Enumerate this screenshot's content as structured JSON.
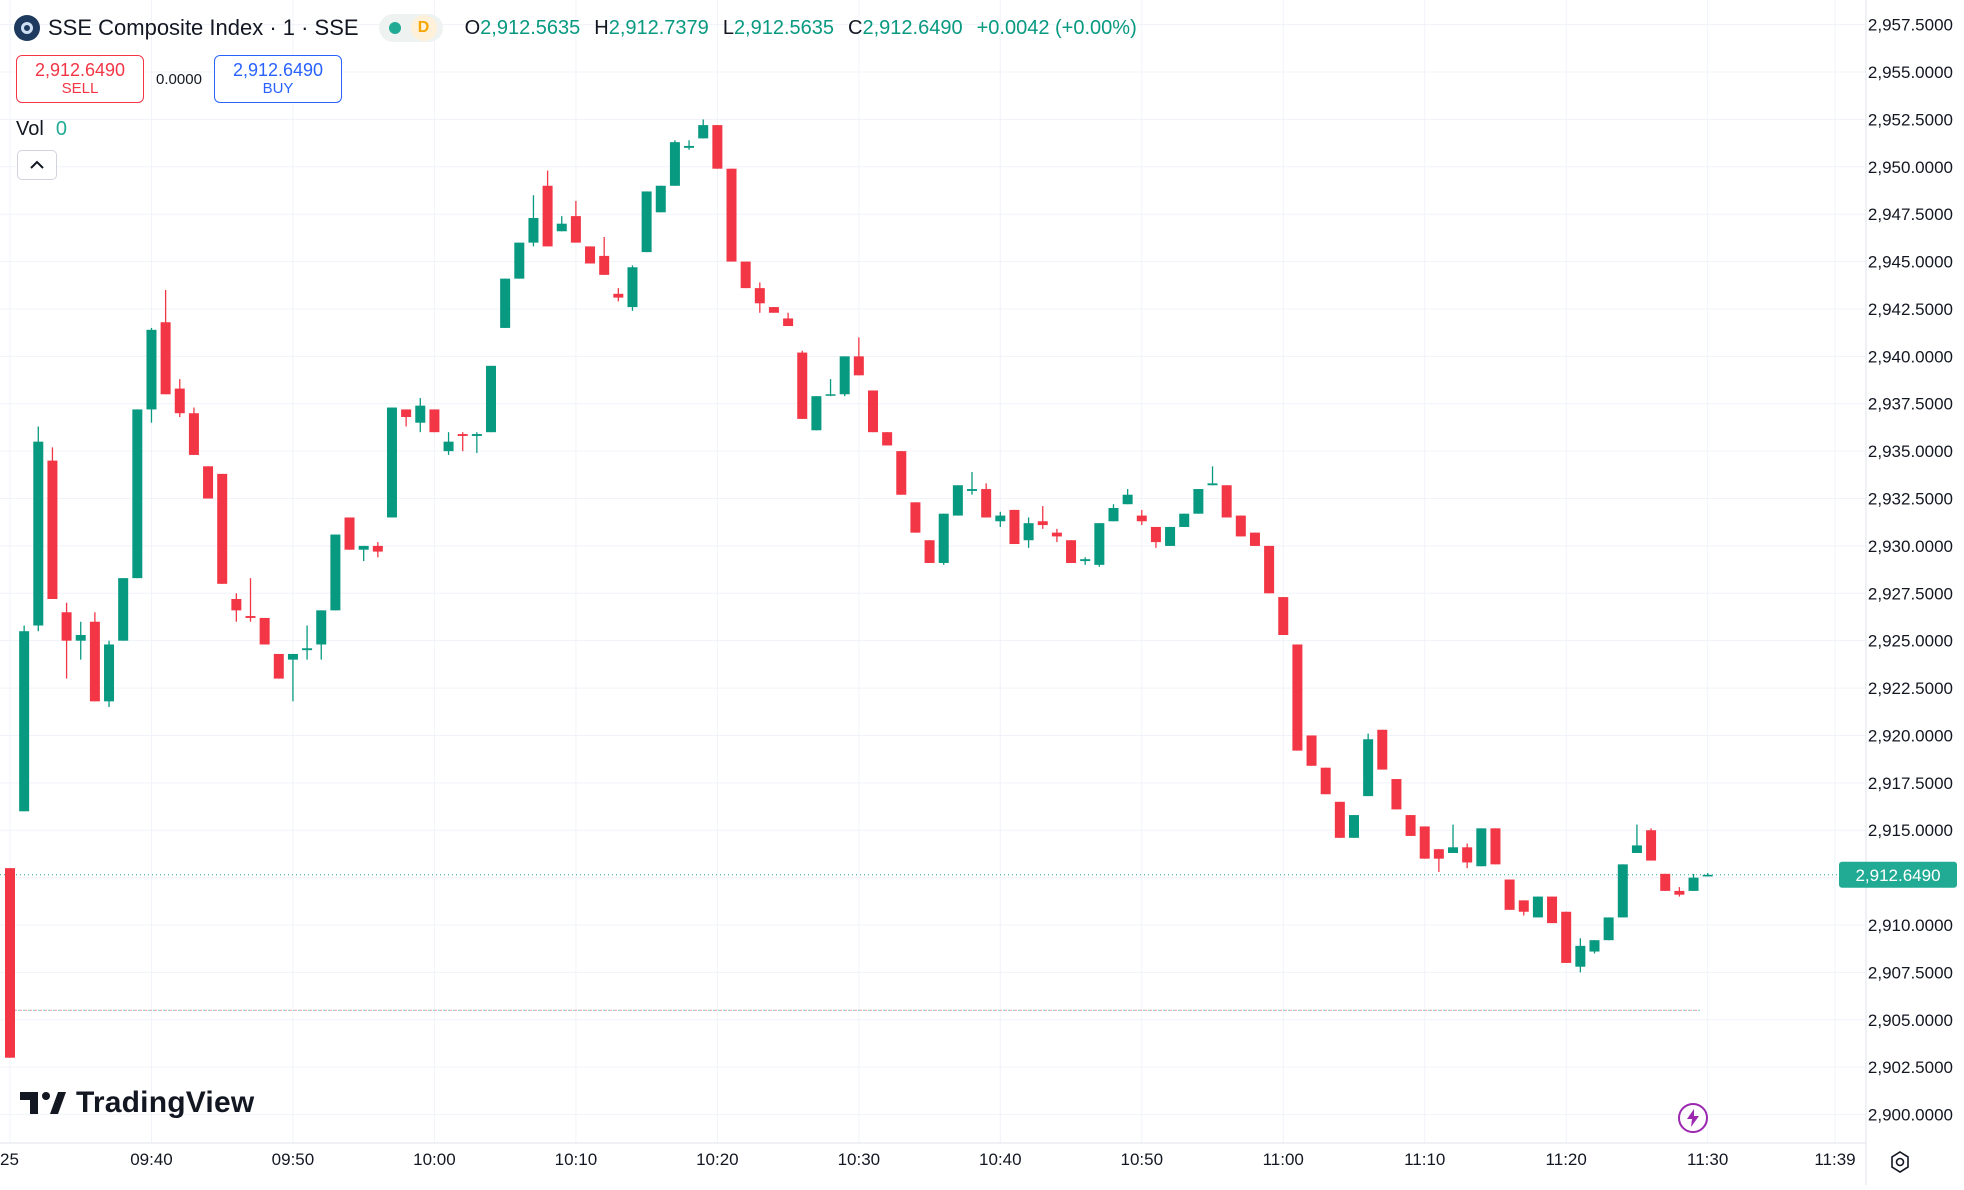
{
  "header": {
    "title": "SSE Composite Index · 1 · SSE",
    "status_letter": "D",
    "ohlc": [
      {
        "k": "O",
        "v": "2,912.5635"
      },
      {
        "k": "H",
        "v": "2,912.7379"
      },
      {
        "k": "L",
        "v": "2,912.5635"
      },
      {
        "k": "C",
        "v": "2,912.6490"
      }
    ],
    "change": "+0.0042 (+0.00%)"
  },
  "trade": {
    "sell_price": "2,912.6490",
    "sell_label": "SELL",
    "spread": "0.0000",
    "buy_price": "2,912.6490",
    "buy_label": "BUY"
  },
  "volume": {
    "label": "Vol",
    "value": "0"
  },
  "watermark": "TradingView",
  "colors": {
    "up": "#089981",
    "down": "#f23645",
    "current": "#22ab94",
    "grid": "#f0f3fa",
    "text": "#131722"
  },
  "icons": [
    "symbol-icon",
    "chevron-up-icon",
    "tradingview-logo-icon",
    "flash-icon",
    "settings-icon"
  ],
  "chart_data": {
    "type": "candlestick",
    "current_price": 2912.649,
    "current_price_label": "2,912.6490",
    "reference_line": 2905.5,
    "y_ticks": [
      "2,900.0000",
      "2,902.5000",
      "2,905.0000",
      "2,907.5000",
      "2,910.0000",
      "2,912.5000",
      "2,915.0000",
      "2,917.5000",
      "2,920.0000",
      "2,922.5000",
      "2,925.0000",
      "2,927.5000",
      "2,930.0000",
      "2,932.5000",
      "2,935.0000",
      "2,937.5000",
      "2,940.0000",
      "2,942.5000",
      "2,945.0000",
      "2,947.5000",
      "2,950.0000",
      "2,952.5000",
      "2,955.0000",
      "2,957.5000"
    ],
    "x_ticks": [
      {
        "label": "25",
        "t": "09:30"
      },
      {
        "label": "09:40",
        "t": "09:40"
      },
      {
        "label": "09:50",
        "t": "09:50"
      },
      {
        "label": "10:00",
        "t": "10:00"
      },
      {
        "label": "10:10",
        "t": "10:10"
      },
      {
        "label": "10:20",
        "t": "10:20"
      },
      {
        "label": "10:30",
        "t": "10:30"
      },
      {
        "label": "10:40",
        "t": "10:40"
      },
      {
        "label": "10:50",
        "t": "10:50"
      },
      {
        "label": "11:00",
        "t": "11:00"
      },
      {
        "label": "11:10",
        "t": "11:10"
      },
      {
        "label": "11:20",
        "t": "11:20"
      },
      {
        "label": "11:30",
        "t": "11:30"
      },
      {
        "label": "11:39",
        "t": "11:39"
      }
    ],
    "x_range": [
      "09:30",
      "11:39"
    ],
    "y_range": [
      2898.5,
      2958.8
    ],
    "candles": [
      [
        "09:30",
        2913.0,
        2913.0,
        2903.0,
        2903.0
      ],
      [
        "09:31",
        2916.0,
        2925.8,
        2916.0,
        2925.5
      ],
      [
        "09:32",
        2925.8,
        2936.3,
        2925.5,
        2935.5
      ],
      [
        "09:33",
        2934.5,
        2935.2,
        2927.2,
        2927.2
      ],
      [
        "09:34",
        2926.5,
        2927.0,
        2923.0,
        2925.0
      ],
      [
        "09:35",
        2925.0,
        2926.0,
        2924.0,
        2925.3
      ],
      [
        "09:36",
        2926.0,
        2926.5,
        2921.8,
        2921.8
      ],
      [
        "09:37",
        2921.8,
        2925.0,
        2921.5,
        2924.8
      ],
      [
        "09:38",
        2925.0,
        2928.3,
        2925.0,
        2928.3
      ],
      [
        "09:39",
        2928.3,
        2937.2,
        2928.3,
        2937.2
      ],
      [
        "09:40",
        2937.2,
        2941.5,
        2936.5,
        2941.4
      ],
      [
        "09:41",
        2941.8,
        2943.5,
        2938.0,
        2938.0
      ],
      [
        "09:42",
        2938.3,
        2938.8,
        2936.8,
        2937.0
      ],
      [
        "09:43",
        2937.0,
        2937.3,
        2934.8,
        2934.8
      ],
      [
        "09:44",
        2934.2,
        2934.2,
        2932.5,
        2932.5
      ],
      [
        "09:45",
        2933.8,
        2933.8,
        2928.0,
        2928.0
      ],
      [
        "09:46",
        2927.2,
        2927.5,
        2926.0,
        2926.6
      ],
      [
        "09:47",
        2926.3,
        2928.3,
        2926.0,
        2926.2
      ],
      [
        "09:48",
        2926.2,
        2926.2,
        2924.8,
        2924.8
      ],
      [
        "09:49",
        2924.3,
        2924.3,
        2923.0,
        2923.0
      ],
      [
        "09:50",
        2924.0,
        2924.3,
        2921.8,
        2924.3
      ],
      [
        "09:51",
        2924.5,
        2925.8,
        2924.0,
        2924.6
      ],
      [
        "09:52",
        2924.8,
        2926.6,
        2924.0,
        2926.6
      ],
      [
        "09:53",
        2926.6,
        2930.6,
        2926.6,
        2930.6
      ],
      [
        "09:54",
        2931.5,
        2931.5,
        2929.8,
        2929.8
      ],
      [
        "09:55",
        2929.8,
        2930.0,
        2929.2,
        2930.0
      ],
      [
        "09:56",
        2930.0,
        2930.2,
        2929.4,
        2929.7
      ],
      [
        "09:57",
        2931.5,
        2937.3,
        2931.5,
        2937.3
      ],
      [
        "09:58",
        2937.2,
        2937.2,
        2936.3,
        2936.8
      ],
      [
        "09:59",
        2936.5,
        2937.8,
        2936.0,
        2937.4
      ],
      [
        "10:00",
        2937.2,
        2937.2,
        2936.0,
        2936.0
      ],
      [
        "10:01",
        2935.0,
        2936.0,
        2934.8,
        2935.5
      ],
      [
        "10:02",
        2935.9,
        2936.0,
        2935.0,
        2935.8
      ],
      [
        "10:03",
        2935.8,
        2936.0,
        2934.9,
        2935.9
      ],
      [
        "10:04",
        2936.0,
        2939.5,
        2936.0,
        2939.5
      ],
      [
        "10:05",
        2941.5,
        2944.1,
        2941.5,
        2944.1
      ],
      [
        "10:06",
        2944.1,
        2946.0,
        2944.1,
        2946.0
      ],
      [
        "10:07",
        2946.0,
        2948.5,
        2945.8,
        2947.3
      ],
      [
        "10:08",
        2949.0,
        2949.8,
        2945.8,
        2945.8
      ],
      [
        "10:09",
        2946.6,
        2947.4,
        2946.6,
        2947.0
      ],
      [
        "10:10",
        2947.4,
        2948.2,
        2946.0,
        2946.0
      ],
      [
        "10:11",
        2945.8,
        2945.8,
        2944.9,
        2944.9
      ],
      [
        "10:12",
        2945.3,
        2946.3,
        2944.3,
        2944.3
      ],
      [
        "10:13",
        2943.3,
        2943.6,
        2942.9,
        2943.1
      ],
      [
        "10:14",
        2942.6,
        2944.8,
        2942.4,
        2944.7
      ],
      [
        "10:15",
        2945.5,
        2948.7,
        2945.5,
        2948.7
      ],
      [
        "10:16",
        2947.6,
        2949.0,
        2947.6,
        2949.0
      ],
      [
        "10:17",
        2949.0,
        2951.4,
        2949.0,
        2951.3
      ],
      [
        "10:18",
        2951.0,
        2951.4,
        2950.9,
        2951.1
      ],
      [
        "10:19",
        2951.5,
        2952.5,
        2951.5,
        2952.2
      ],
      [
        "10:20",
        2952.2,
        2952.2,
        2949.9,
        2949.9
      ],
      [
        "10:21",
        2949.9,
        2949.9,
        2945.0,
        2945.0
      ],
      [
        "10:22",
        2945.0,
        2945.0,
        2943.6,
        2943.6
      ],
      [
        "10:23",
        2943.6,
        2943.9,
        2942.3,
        2942.8
      ],
      [
        "10:24",
        2942.6,
        2942.6,
        2942.3,
        2942.3
      ],
      [
        "10:25",
        2942.0,
        2942.3,
        2941.6,
        2941.6
      ],
      [
        "10:26",
        2940.2,
        2940.3,
        2936.7,
        2936.7
      ],
      [
        "10:27",
        2936.1,
        2937.9,
        2936.1,
        2937.9
      ],
      [
        "10:28",
        2938.0,
        2938.8,
        2937.9,
        2938.0
      ],
      [
        "10:29",
        2938.0,
        2940.0,
        2937.9,
        2940.0
      ],
      [
        "10:30",
        2940.0,
        2941.0,
        2939.0,
        2939.0
      ],
      [
        "10:31",
        2938.2,
        2938.2,
        2936.0,
        2936.0
      ],
      [
        "10:32",
        2936.0,
        2936.0,
        2935.3,
        2935.3
      ],
      [
        "10:33",
        2935.0,
        2935.0,
        2932.7,
        2932.7
      ],
      [
        "10:34",
        2932.3,
        2932.3,
        2930.7,
        2930.7
      ],
      [
        "10:35",
        2930.3,
        2930.3,
        2929.1,
        2929.1
      ],
      [
        "10:36",
        2929.1,
        2931.7,
        2929.0,
        2931.7
      ],
      [
        "10:37",
        2931.6,
        2933.2,
        2931.6,
        2933.2
      ],
      [
        "10:38",
        2932.9,
        2933.9,
        2932.7,
        2933.0
      ],
      [
        "10:39",
        2933.0,
        2933.3,
        2931.5,
        2931.5
      ],
      [
        "10:40",
        2931.3,
        2931.8,
        2931.0,
        2931.6
      ],
      [
        "10:41",
        2931.9,
        2931.9,
        2930.1,
        2930.1
      ],
      [
        "10:42",
        2930.3,
        2931.5,
        2929.9,
        2931.2
      ],
      [
        "10:43",
        2931.3,
        2932.1,
        2930.9,
        2931.1
      ],
      [
        "10:44",
        2930.7,
        2930.9,
        2930.2,
        2930.5
      ],
      [
        "10:45",
        2930.3,
        2930.3,
        2929.1,
        2929.1
      ],
      [
        "10:46",
        2929.2,
        2929.4,
        2929.0,
        2929.3
      ],
      [
        "10:47",
        2929.0,
        2931.2,
        2928.9,
        2931.2
      ],
      [
        "10:48",
        2931.3,
        2932.2,
        2931.3,
        2932.0
      ],
      [
        "10:49",
        2932.2,
        2933.0,
        2932.2,
        2932.7
      ],
      [
        "10:50",
        2931.6,
        2931.9,
        2931.1,
        2931.3
      ],
      [
        "10:51",
        2931.0,
        2931.0,
        2929.9,
        2930.2
      ],
      [
        "10:52",
        2930.0,
        2931.0,
        2930.0,
        2931.0
      ],
      [
        "10:53",
        2931.0,
        2931.7,
        2931.0,
        2931.7
      ],
      [
        "10:54",
        2931.7,
        2933.0,
        2931.7,
        2933.0
      ],
      [
        "10:55",
        2933.2,
        2934.2,
        2933.2,
        2933.3
      ],
      [
        "10:56",
        2933.2,
        2933.2,
        2931.5,
        2931.5
      ],
      [
        "10:57",
        2931.6,
        2931.6,
        2930.5,
        2930.5
      ],
      [
        "10:58",
        2930.7,
        2930.7,
        2930.0,
        2930.0
      ],
      [
        "10:59",
        2930.0,
        2930.0,
        2927.5,
        2927.5
      ],
      [
        "11:00",
        2927.3,
        2927.3,
        2925.3,
        2925.3
      ],
      [
        "11:01",
        2924.8,
        2924.8,
        2919.2,
        2919.2
      ],
      [
        "11:02",
        2920.0,
        2920.0,
        2918.4,
        2918.4
      ],
      [
        "11:03",
        2918.3,
        2918.3,
        2916.9,
        2916.9
      ],
      [
        "11:04",
        2916.5,
        2916.5,
        2914.6,
        2914.6
      ],
      [
        "11:05",
        2914.6,
        2915.8,
        2914.6,
        2915.8
      ],
      [
        "11:06",
        2916.8,
        2920.1,
        2916.8,
        2919.8
      ],
      [
        "11:07",
        2920.3,
        2920.3,
        2918.2,
        2918.2
      ],
      [
        "11:08",
        2917.7,
        2917.7,
        2916.1,
        2916.1
      ],
      [
        "11:09",
        2915.8,
        2915.8,
        2914.7,
        2914.7
      ],
      [
        "11:10",
        2915.2,
        2915.2,
        2913.5,
        2913.5
      ],
      [
        "11:11",
        2914.0,
        2914.0,
        2912.8,
        2913.5
      ],
      [
        "11:12",
        2913.8,
        2915.3,
        2913.8,
        2914.1
      ],
      [
        "11:13",
        2914.1,
        2914.3,
        2913.0,
        2913.3
      ],
      [
        "11:14",
        2913.1,
        2915.1,
        2913.1,
        2915.1
      ],
      [
        "11:15",
        2915.1,
        2915.1,
        2913.2,
        2913.2
      ],
      [
        "11:16",
        2912.4,
        2912.4,
        2910.8,
        2910.8
      ],
      [
        "11:17",
        2911.3,
        2911.3,
        2910.5,
        2910.7
      ],
      [
        "11:18",
        2910.4,
        2911.5,
        2910.4,
        2911.5
      ],
      [
        "11:19",
        2911.5,
        2911.5,
        2910.1,
        2910.1
      ],
      [
        "11:20",
        2910.7,
        2910.7,
        2908.0,
        2908.0
      ],
      [
        "11:21",
        2907.8,
        2909.3,
        2907.5,
        2908.9
      ],
      [
        "11:22",
        2908.6,
        2909.2,
        2908.5,
        2909.2
      ],
      [
        "11:23",
        2909.2,
        2910.4,
        2909.2,
        2910.4
      ],
      [
        "11:24",
        2910.4,
        2913.2,
        2910.4,
        2913.2
      ],
      [
        "11:25",
        2913.8,
        2915.3,
        2913.8,
        2914.2
      ],
      [
        "11:26",
        2915.0,
        2915.1,
        2913.4,
        2913.4
      ],
      [
        "11:27",
        2912.7,
        2912.7,
        2911.8,
        2911.8
      ],
      [
        "11:28",
        2911.8,
        2912.0,
        2911.5,
        2911.6
      ],
      [
        "11:29",
        2911.8,
        2912.7,
        2911.8,
        2912.5
      ],
      [
        "11:30",
        2912.5635,
        2912.7379,
        2912.5635,
        2912.649
      ]
    ]
  }
}
